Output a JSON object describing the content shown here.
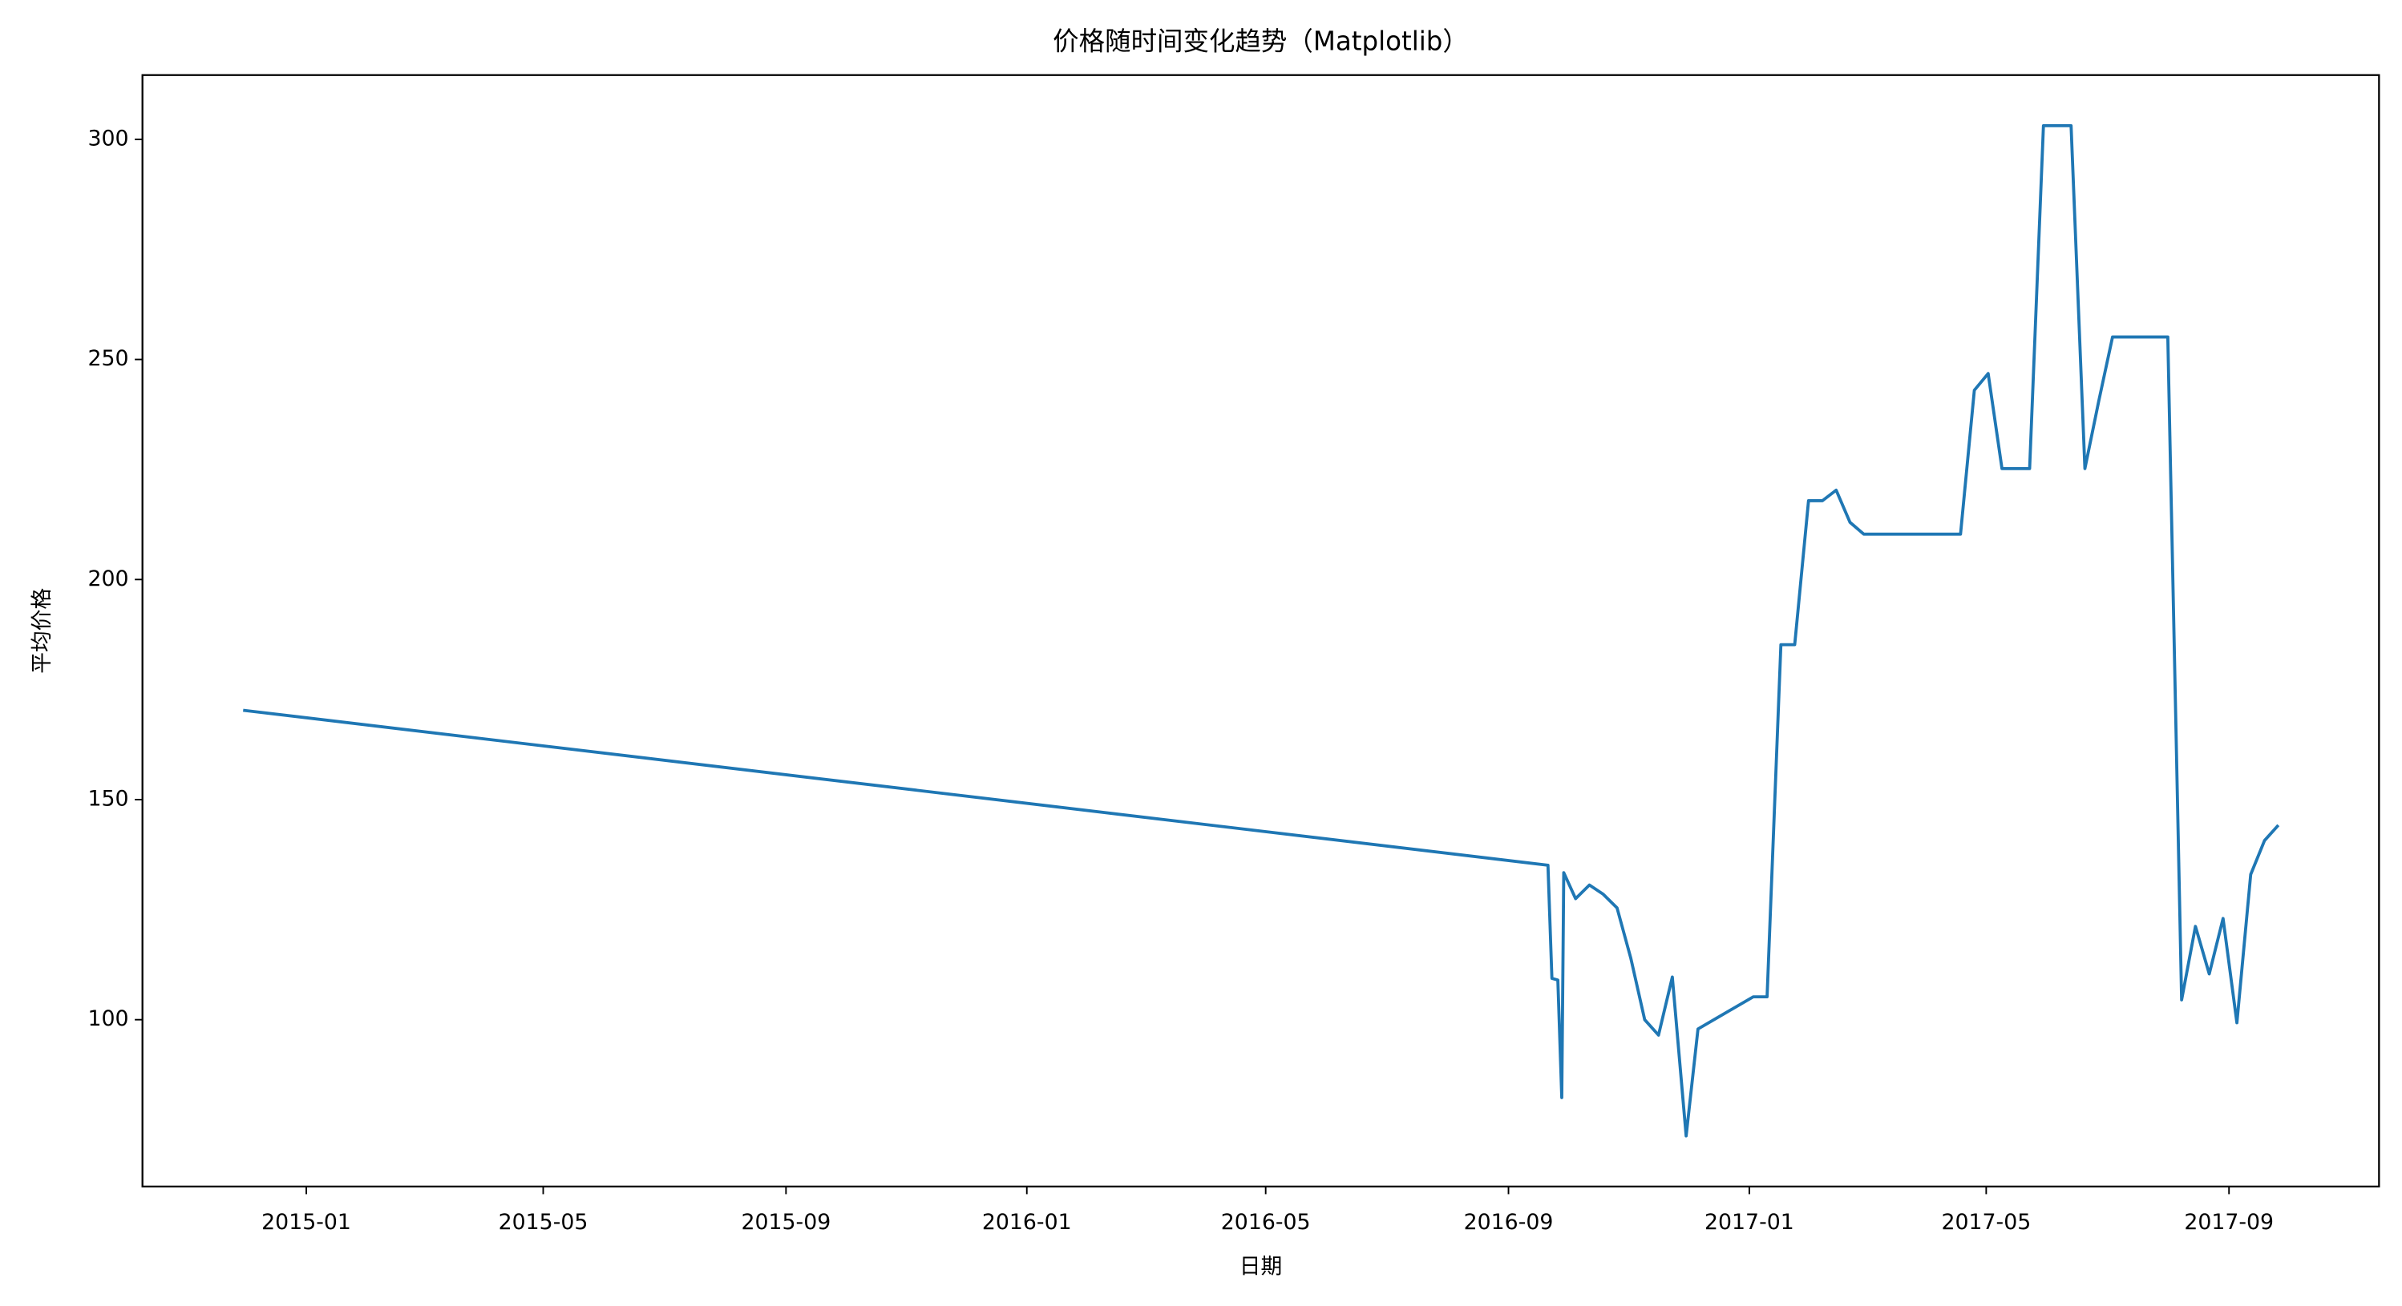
{
  "chart_data": {
    "type": "line",
    "title": "价格随时间变化趋势（Matplotlib）",
    "x_label": "日期",
    "y_label": "平均价格",
    "x": [
      "2014-11-30",
      "2016-09-21",
      "2016-09-23",
      "2016-09-26",
      "2016-09-28",
      "2016-09-29",
      "2016-10-05",
      "2016-10-12",
      "2016-10-19",
      "2016-10-26",
      "2016-11-02",
      "2016-11-09",
      "2016-11-16",
      "2016-11-23",
      "2016-11-30",
      "2016-12-06",
      "2017-01-03",
      "2017-01-10",
      "2017-01-17",
      "2017-01-24",
      "2017-01-31",
      "2017-02-07",
      "2017-02-14",
      "2017-02-21",
      "2017-02-28",
      "2017-04-18",
      "2017-04-25",
      "2017-05-02",
      "2017-05-09",
      "2017-05-23",
      "2017-05-30",
      "2017-06-13",
      "2017-06-20",
      "2017-06-27",
      "2017-07-04",
      "2017-08-01",
      "2017-08-08",
      "2017-08-15",
      "2017-08-22",
      "2017-08-29",
      "2017-09-05",
      "2017-09-12",
      "2017-09-19",
      "2017-09-26"
    ],
    "values": [
      170.3,
      135.1,
      109.4,
      109,
      82.3,
      133.4,
      127.5,
      130.6,
      128.5,
      125.4,
      113.9,
      100,
      96.5,
      109.7,
      73.6,
      97.9,
      105.2,
      105.2,
      185.2,
      185.2,
      217.9,
      217.9,
      220.3,
      213,
      210.3,
      210.3,
      243,
      246.8,
      225.2,
      225.2,
      303.1,
      303.1,
      225.2,
      240.5,
      255.1,
      255.1,
      104.5,
      121.2,
      110.4,
      123,
      99.3,
      133,
      140.7,
      144.2
    ],
    "color": "#1f77b4",
    "xlim": [
      "2014-10-10",
      "2017-11-16"
    ],
    "xticks": [
      "2015-01",
      "2015-05",
      "2015-09",
      "2016-01",
      "2016-05",
      "2016-09",
      "2017-01",
      "2017-05",
      "2017-09"
    ],
    "ylim": [
      62.1,
      314.6
    ],
    "yticks": [
      100,
      150,
      200,
      250,
      300
    ],
    "grid": false
  }
}
